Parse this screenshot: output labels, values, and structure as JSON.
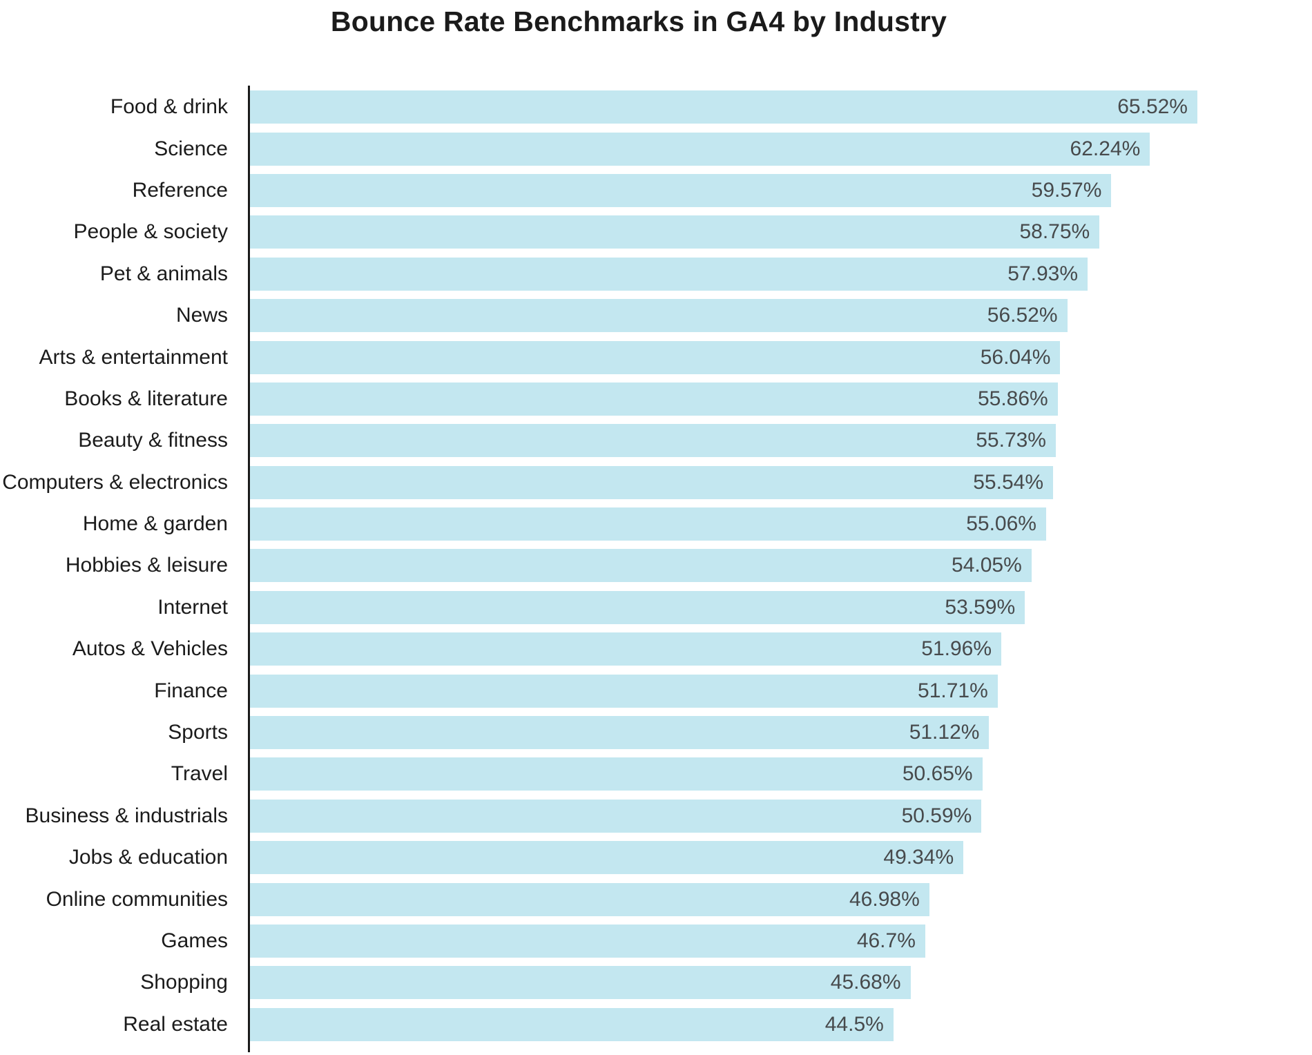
{
  "chart_data": {
    "type": "bar",
    "orientation": "horizontal",
    "title": "Bounce Rate Benchmarks in GA4 by Industry",
    "xlabel": "",
    "ylabel": "",
    "xlim": [
      0,
      70
    ],
    "grid": false,
    "legend": false,
    "bar_color": "#c3e7f0",
    "label_color": "#1b1b1b",
    "value_label_color": "#474a4c",
    "axis_color": "#1b1b1b",
    "categories": [
      "Food & drink",
      "Science",
      "Reference",
      "People & society",
      "Pet & animals",
      "News",
      "Arts & entertainment",
      "Books & literature",
      "Beauty & fitness",
      "Computers & electronics",
      "Home & garden",
      "Hobbies & leisure",
      "Internet",
      "Autos & Vehicles",
      "Finance",
      "Sports",
      "Travel",
      "Business & industrials",
      "Jobs & education",
      "Online communities",
      "Games",
      "Shopping",
      "Real estate"
    ],
    "values": [
      65.52,
      62.24,
      59.57,
      58.75,
      57.93,
      56.52,
      56.04,
      55.86,
      55.73,
      55.54,
      55.06,
      54.05,
      53.59,
      51.96,
      51.71,
      51.12,
      50.65,
      50.59,
      49.34,
      46.98,
      46.7,
      45.68,
      44.5
    ],
    "value_labels": [
      "65.52%",
      "62.24%",
      "59.57%",
      "58.75%",
      "57.93%",
      "56.52%",
      "56.04%",
      "55.86%",
      "55.73%",
      "55.54%",
      "55.06%",
      "54.05%",
      "53.59%",
      "51.96%",
      "51.71%",
      "51.12%",
      "50.65%",
      "50.59%",
      "49.34%",
      "46.98%",
      "46.7%",
      "45.68%",
      "44.5%"
    ]
  }
}
